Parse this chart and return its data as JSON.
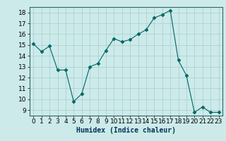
{
  "x": [
    0,
    1,
    2,
    3,
    4,
    5,
    6,
    7,
    8,
    9,
    10,
    11,
    12,
    13,
    14,
    15,
    16,
    17,
    18,
    19,
    20,
    21,
    22,
    23
  ],
  "y": [
    15.1,
    14.4,
    14.9,
    12.7,
    12.7,
    9.8,
    10.5,
    13.0,
    13.3,
    14.5,
    15.6,
    15.3,
    15.5,
    16.0,
    16.4,
    17.5,
    17.8,
    18.2,
    13.6,
    12.2,
    8.8,
    9.3,
    8.8,
    8.8
  ],
  "xlabel": "Humidex (Indice chaleur)",
  "xlim": [
    -0.5,
    23.5
  ],
  "ylim": [
    8.5,
    18.5
  ],
  "yticks": [
    9,
    10,
    11,
    12,
    13,
    14,
    15,
    16,
    17,
    18
  ],
  "xticks": [
    0,
    1,
    2,
    3,
    4,
    5,
    6,
    7,
    8,
    9,
    10,
    11,
    12,
    13,
    14,
    15,
    16,
    17,
    18,
    19,
    20,
    21,
    22,
    23
  ],
  "line_color": "#006666",
  "marker": "D",
  "marker_size": 2.5,
  "bg_color": "#cceaea",
  "grid_color": "#aacccc",
  "xlabel_fontsize": 7,
  "tick_fontsize": 6.5,
  "spine_color": "#336666"
}
